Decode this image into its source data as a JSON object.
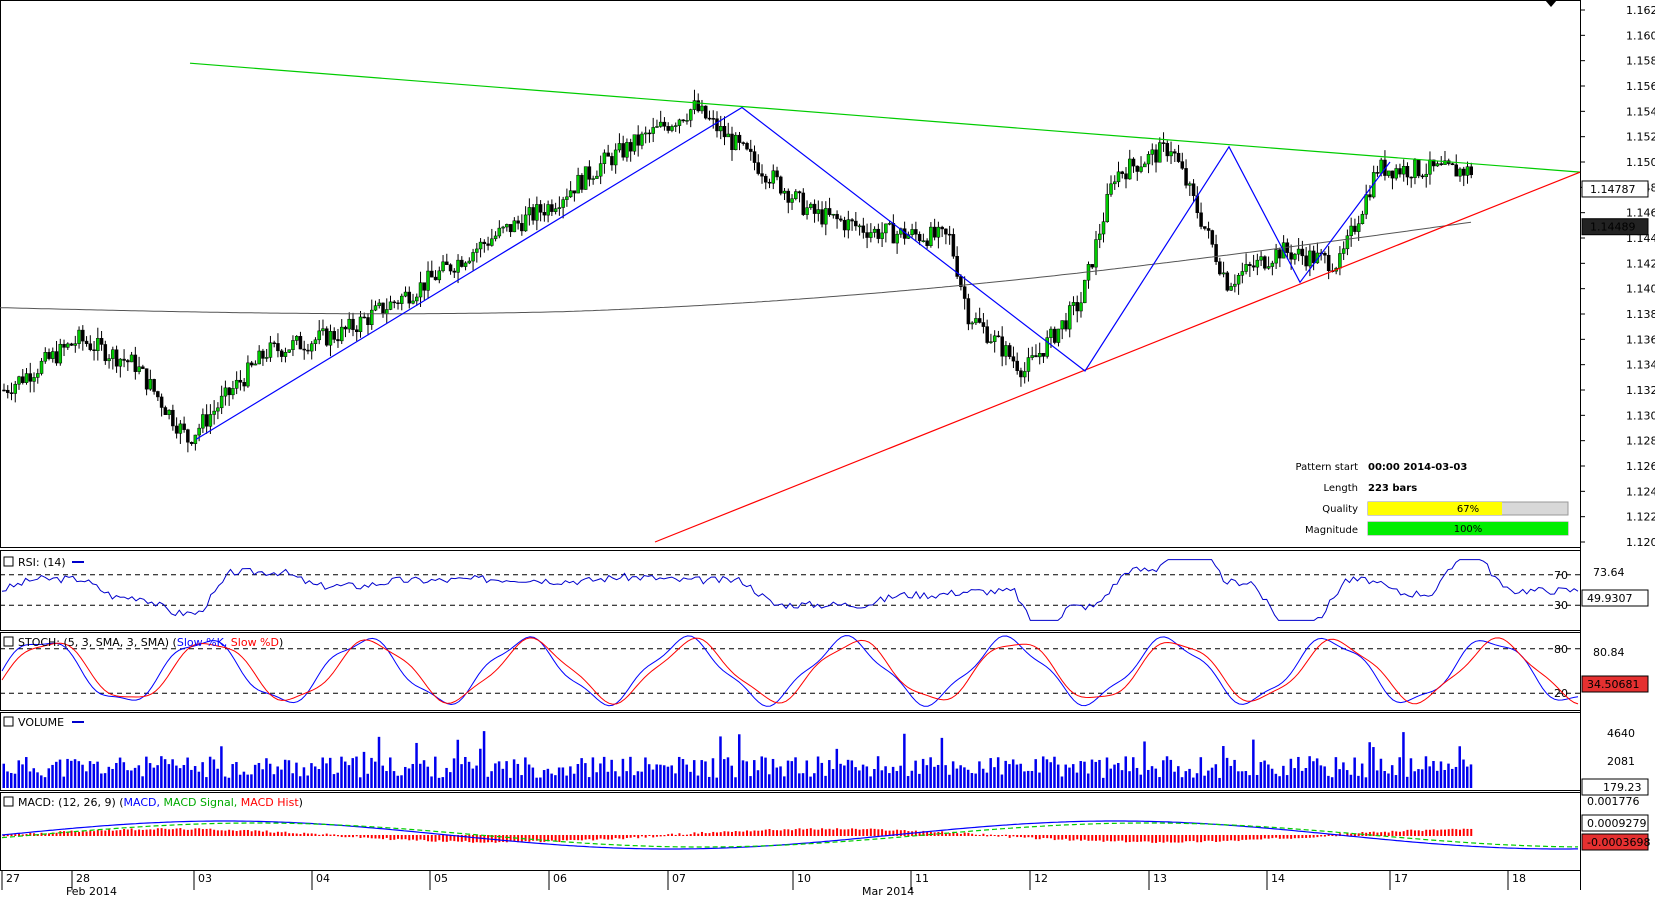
{
  "chart_data": {
    "type": "candlestick",
    "symbol_info": {
      "pattern_start_label": "Pattern start",
      "pattern_start_value": "00:00 2014-03-03",
      "length_label": "Length",
      "length_value": "223 bars",
      "quality_label": "Quality",
      "quality_value": "67%",
      "quality_fraction": 0.67,
      "magnitude_label": "Magnitude",
      "magnitude_value": "100%",
      "magnitude_fraction": 1.0
    },
    "price_axis": {
      "ylim": [
        1.12,
        1.162
      ],
      "ticks": [
        "1.1620",
        "1.1600",
        "1.1580",
        "1.1560",
        "1.1540",
        "1.1520",
        "1.1500",
        "1.1480",
        "1.1460",
        "1.1440",
        "1.1420",
        "1.1400",
        "1.1380",
        "1.1360",
        "1.1340",
        "1.1320",
        "1.1300",
        "1.1280",
        "1.1260",
        "1.1240",
        "1.1220",
        "1.1200"
      ],
      "current_price": "1.14787",
      "ma_value": "1.14489"
    },
    "x_axis": {
      "day_labels": [
        "27",
        "28",
        "03",
        "04",
        "05",
        "06",
        "07",
        "10",
        "11",
        "12",
        "13",
        "14",
        "17",
        "18"
      ],
      "month_labels": [
        "Feb 2014",
        "Mar 2014"
      ]
    },
    "trendlines": {
      "resistance": {
        "color": "#00cc00",
        "from": [
          1.1578
        ],
        "to": [
          1.1492
        ]
      },
      "support": {
        "color": "#ff0000",
        "from": [
          1.12
        ],
        "to": [
          1.1492
        ]
      }
    },
    "zigzag_pivots": [
      1.1281,
      1.1543,
      1.1335,
      1.1512,
      1.1405,
      1.15
    ],
    "rsi": {
      "title": "RSI: (14)",
      "levels": [
        "70",
        "30"
      ],
      "ref_value": "73.64",
      "current": "49.9307"
    },
    "stoch": {
      "title": "STOCH: (5, 3, SMA, 3, SMA)",
      "k_label": "Slow %K,",
      "d_label": "Slow %D",
      "levels": [
        "80",
        "20"
      ],
      "ref_value": "80.84",
      "current": "34.50681"
    },
    "volume": {
      "title": "VOLUME",
      "ticks": [
        "4640",
        "2081"
      ],
      "current": "179.23"
    },
    "macd": {
      "title": "MACD: (12, 26, 9)",
      "macd_label": "MACD,",
      "signal_label": "MACD Signal,",
      "hist_label": "MACD Hist",
      "ticks": [
        "0.001776"
      ],
      "macd_value": "0.0009279",
      "signal_value": "-0.0003698"
    },
    "colors": {
      "bull": "#00cc00",
      "bear": "#000000",
      "zigzag": "#0000ff",
      "ma": "#555555",
      "rsi": "#0000cc",
      "stoch_k": "#0000ff",
      "stoch_d": "#ff0000",
      "volume": "#0000ee",
      "macd": "#0000ff",
      "signal": "#00cc00",
      "hist": "#ff0000"
    }
  }
}
